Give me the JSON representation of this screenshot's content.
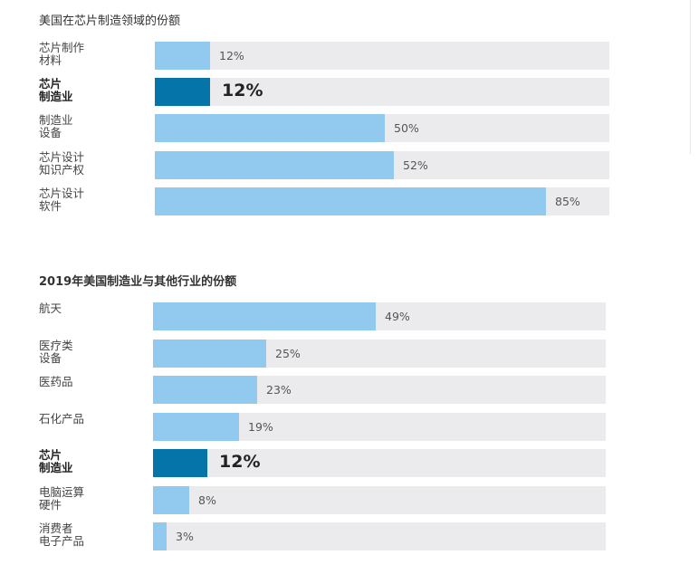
{
  "chart_data": [
    {
      "type": "bar",
      "orientation": "horizontal",
      "title": "美国在芯片制造领域的份额",
      "categories": [
        "芯片制作\n材料",
        "芯片\n制造业",
        "制造业\n设备",
        "芯片设计\n知识产权",
        "芯片设计\n软件"
      ],
      "values": [
        12,
        12,
        50,
        52,
        85
      ],
      "value_labels": [
        "12%",
        "12%",
        "50%",
        "52%",
        "85%"
      ],
      "highlight_index": 1,
      "xlim": [
        0,
        100
      ],
      "colors": {
        "bar": "#92c9ee",
        "highlight": "#0574a9",
        "track": "#ebebed"
      }
    },
    {
      "type": "bar",
      "orientation": "horizontal",
      "title": "2019年美国制造业与其他行业的份额",
      "categories": [
        "航天",
        "医疗类\n设备",
        "医药品",
        "石化产品",
        "芯片\n制造业",
        "电脑运算\n硬件",
        "消费者\n电子产品"
      ],
      "values": [
        49,
        25,
        23,
        19,
        12,
        8,
        3
      ],
      "value_labels": [
        "49%",
        "25%",
        "23%",
        "19%",
        "12%",
        "8%",
        "3%"
      ],
      "highlight_index": 4,
      "xlim": [
        0,
        100
      ],
      "colors": {
        "bar": "#92c9ee",
        "highlight": "#0574a9",
        "track": "#ebebed"
      }
    }
  ]
}
